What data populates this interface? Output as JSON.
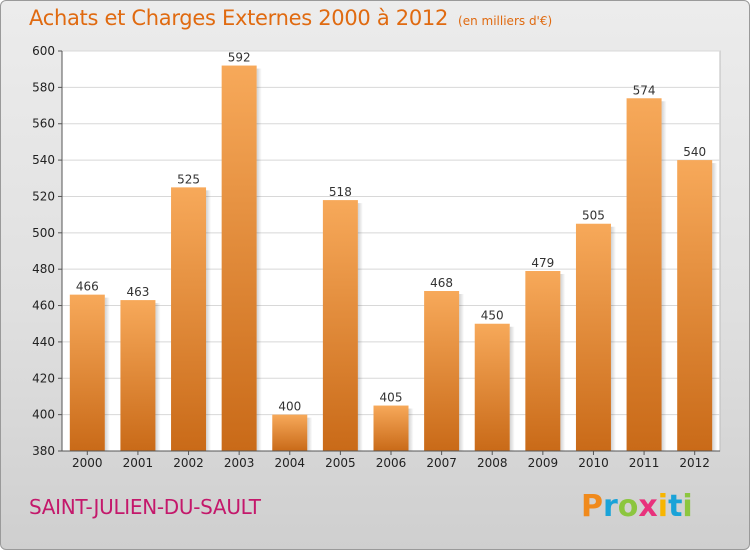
{
  "header": {
    "title": "Achats et Charges Externes 2000 à 2012",
    "subtitle": "(en milliers d'€)"
  },
  "footer": {
    "commune": "SAINT-JULIEN-DU-SAULT",
    "logo_letters": [
      "P",
      "r",
      "o",
      "x",
      "i",
      "t",
      "i"
    ],
    "logo_colors": [
      "#f08a1c",
      "#1aa3d8",
      "#8cc63f",
      "#e8327c",
      "#f7b500",
      "#1aa3d8",
      "#8cc63f"
    ]
  },
  "chart_data": {
    "type": "bar",
    "title": "Achats et Charges Externes 2000 à 2012",
    "categories": [
      "2000",
      "2001",
      "2002",
      "2003",
      "2004",
      "2005",
      "2006",
      "2007",
      "2008",
      "2009",
      "2010",
      "2011",
      "2012"
    ],
    "values": [
      466,
      463,
      525,
      592,
      400,
      518,
      405,
      468,
      450,
      479,
      505,
      574,
      540
    ],
    "data_labels": [
      "466",
      "463",
      "525",
      "592",
      "400",
      "518",
      "405",
      "468",
      "450",
      "479",
      "505",
      "574",
      "540"
    ],
    "ylim": [
      380,
      600
    ],
    "yticks": [
      "380",
      "400",
      "420",
      "440",
      "460",
      "480",
      "500",
      "520",
      "540",
      "560",
      "580",
      "600"
    ],
    "grid": true,
    "bar_color_top": "#f7a95a",
    "bar_color_bottom": "#c96a18"
  }
}
